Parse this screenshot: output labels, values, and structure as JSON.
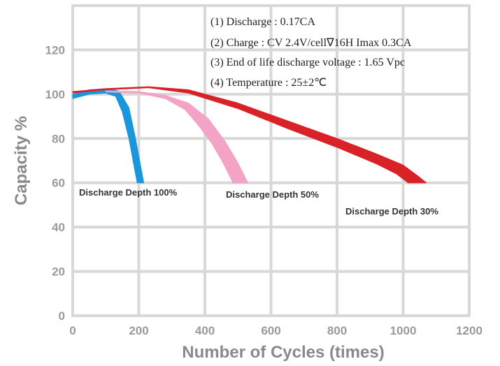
{
  "chart_data": {
    "type": "area",
    "title": "",
    "xlabel": "Number of Cycles (times)",
    "ylabel": "Capacity %",
    "xlim": [
      0,
      1200
    ],
    "ylim": [
      0,
      140
    ],
    "x_ticks": [
      0,
      200,
      400,
      600,
      800,
      1000,
      1200
    ],
    "y_ticks": [
      0,
      20,
      40,
      60,
      80,
      100,
      120
    ],
    "grid": true,
    "colors": {
      "grid": "#d8d8d8",
      "background": "#ffffff"
    },
    "annotations": [
      "(1) Discharge : 0.17CA",
      "(2) Charge : CV 2.4V/cell∇16H Imax 0.3CA",
      "(3) End of life discharge voltage : 1.65 Vpc",
      "(4) Temperature : 25±2℃"
    ],
    "series": [
      {
        "name": "Discharge Depth 100%",
        "color": "#1a96dc",
        "upper": [
          [
            0,
            100
          ],
          [
            50,
            102
          ],
          [
            100,
            102.5
          ],
          [
            140,
            101.5
          ],
          [
            170,
            94
          ],
          [
            190,
            80
          ],
          [
            205,
            68
          ],
          [
            215,
            60
          ]
        ],
        "lower": [
          [
            0,
            98
          ],
          [
            50,
            100
          ],
          [
            100,
            100.5
          ],
          [
            130,
            99
          ],
          [
            150,
            92
          ],
          [
            170,
            80
          ],
          [
            185,
            68
          ],
          [
            195,
            60
          ]
        ]
      },
      {
        "name": "Discharge Depth 50%",
        "color": "#f3a3c6",
        "upper": [
          [
            100,
            101.5
          ],
          [
            200,
            101.2
          ],
          [
            280,
            99.5
          ],
          [
            350,
            96
          ],
          [
            410,
            89
          ],
          [
            460,
            79
          ],
          [
            500,
            69
          ],
          [
            530,
            60
          ]
        ],
        "lower": [
          [
            100,
            101
          ],
          [
            200,
            100.5
          ],
          [
            280,
            98
          ],
          [
            340,
            93
          ],
          [
            380,
            86
          ],
          [
            420,
            78
          ],
          [
            455,
            69
          ],
          [
            485,
            60
          ]
        ]
      },
      {
        "name": "Discharge Depth 30%",
        "color": "#d92128",
        "upper": [
          [
            0,
            101.2
          ],
          [
            100,
            102.5
          ],
          [
            230,
            103.4
          ],
          [
            350,
            102
          ],
          [
            500,
            96
          ],
          [
            650,
            88
          ],
          [
            800,
            80
          ],
          [
            920,
            73
          ],
          [
            1000,
            68
          ],
          [
            1045,
            63
          ],
          [
            1070,
            60
          ]
        ],
        "lower": [
          [
            0,
            100.6
          ],
          [
            100,
            102
          ],
          [
            230,
            102.9
          ],
          [
            350,
            100.5
          ],
          [
            500,
            93.5
          ],
          [
            650,
            84.5
          ],
          [
            800,
            76
          ],
          [
            920,
            68.5
          ],
          [
            980,
            64
          ],
          [
            1015,
            60
          ]
        ]
      }
    ]
  }
}
